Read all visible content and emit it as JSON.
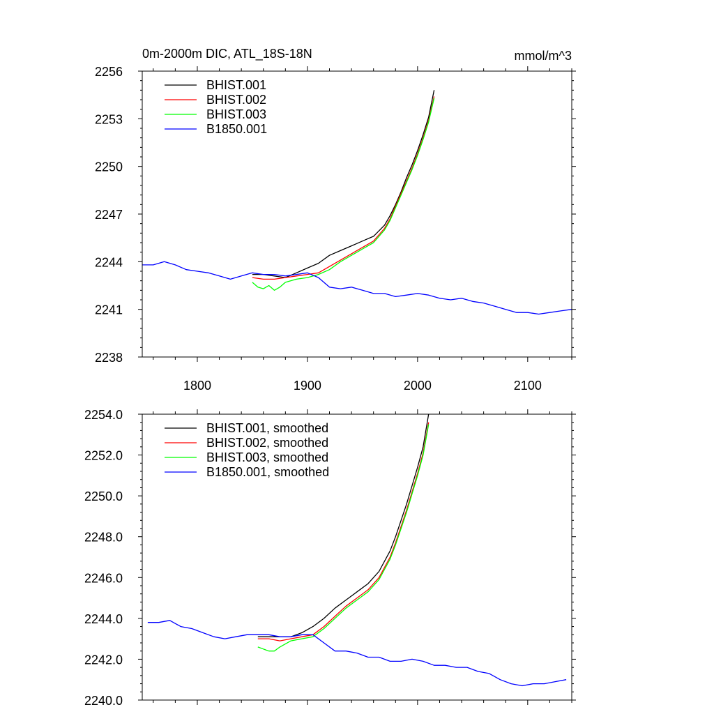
{
  "page": {
    "title": "0m-2000m DIC, ATL_18S-18N",
    "units": "mmol/m^3"
  },
  "chart_data": [
    {
      "type": "line",
      "title": "0m-2000m DIC, ATL_18S-18N",
      "units_label": "mmol/m^3",
      "xlim": [
        1750,
        2140
      ],
      "ylim": [
        2238,
        2256
      ],
      "x_ticks": [
        1800,
        1900,
        2000,
        2100
      ],
      "x_tick_labels": [
        "1800",
        "1900",
        "2000",
        "2100"
      ],
      "y_ticks": [
        2238,
        2241,
        2244,
        2247,
        2250,
        2253,
        2256
      ],
      "y_tick_labels": [
        "2238",
        "2241",
        "2244",
        "2247",
        "2250",
        "2253",
        "2256"
      ],
      "legend_position": "top-left",
      "grid": false,
      "series": [
        {
          "name": "BHIST.001",
          "color": "#000000",
          "x": [
            1850,
            1860,
            1870,
            1880,
            1890,
            1900,
            1910,
            1920,
            1930,
            1940,
            1950,
            1960,
            1970,
            1975,
            1980,
            1985,
            1990,
            1995,
            2000,
            2005,
            2010,
            2015
          ],
          "y": [
            2243.2,
            2243.2,
            2243.1,
            2243.0,
            2243.3,
            2243.6,
            2243.9,
            2244.4,
            2244.7,
            2245.0,
            2245.3,
            2245.6,
            2246.3,
            2246.9,
            2247.6,
            2248.4,
            2249.3,
            2250.1,
            2251.0,
            2252.0,
            2253.1,
            2254.8
          ]
        },
        {
          "name": "BHIST.002",
          "color": "#ff0000",
          "x": [
            1850,
            1860,
            1870,
            1880,
            1890,
            1900,
            1910,
            1920,
            1930,
            1940,
            1950,
            1960,
            1970,
            1975,
            1980,
            1985,
            1990,
            1995,
            2000,
            2005,
            2010,
            2015
          ],
          "y": [
            2243.0,
            2242.9,
            2242.9,
            2243.0,
            2243.1,
            2243.2,
            2243.3,
            2243.7,
            2244.1,
            2244.5,
            2244.9,
            2245.3,
            2246.1,
            2246.7,
            2247.5,
            2248.3,
            2249.1,
            2249.9,
            2250.8,
            2251.8,
            2252.9,
            2254.4
          ]
        },
        {
          "name": "BHIST.003",
          "color": "#00ff00",
          "x": [
            1850,
            1855,
            1860,
            1865,
            1870,
            1875,
            1880,
            1890,
            1900,
            1910,
            1920,
            1930,
            1940,
            1950,
            1960,
            1970,
            1975,
            1980,
            1985,
            1990,
            1995,
            2000,
            2005,
            2010,
            2015
          ],
          "y": [
            2242.7,
            2242.4,
            2242.3,
            2242.5,
            2242.2,
            2242.4,
            2242.7,
            2242.9,
            2243.0,
            2243.2,
            2243.5,
            2244.0,
            2244.4,
            2244.8,
            2245.2,
            2246.0,
            2246.6,
            2247.4,
            2248.2,
            2249.0,
            2249.8,
            2250.7,
            2251.7,
            2252.8,
            2254.3
          ]
        },
        {
          "name": "B1850.001",
          "color": "#0000ff",
          "x": [
            1750,
            1760,
            1770,
            1780,
            1790,
            1800,
            1810,
            1820,
            1830,
            1840,
            1850,
            1860,
            1870,
            1880,
            1890,
            1900,
            1910,
            1920,
            1930,
            1940,
            1950,
            1960,
            1970,
            1980,
            1990,
            2000,
            2010,
            2020,
            2030,
            2040,
            2050,
            2060,
            2070,
            2080,
            2090,
            2100,
            2110,
            2120,
            2130,
            2140
          ],
          "y": [
            2243.8,
            2243.8,
            2244.0,
            2243.8,
            2243.5,
            2243.4,
            2243.3,
            2243.1,
            2242.9,
            2243.1,
            2243.3,
            2243.2,
            2243.2,
            2243.1,
            2243.2,
            2243.3,
            2243.0,
            2242.4,
            2242.3,
            2242.4,
            2242.2,
            2242.0,
            2242.0,
            2241.8,
            2241.9,
            2242.0,
            2241.9,
            2241.7,
            2241.6,
            2241.7,
            2241.5,
            2241.4,
            2241.2,
            2241.0,
            2240.8,
            2240.8,
            2240.7,
            2240.8,
            2240.9,
            2241.0
          ]
        }
      ]
    },
    {
      "type": "line",
      "xlim": [
        1750,
        2140
      ],
      "ylim": [
        2240.0,
        2254.0
      ],
      "x_ticks": [
        1800,
        1900,
        2000,
        2100
      ],
      "y_ticks": [
        2240,
        2242,
        2244,
        2246,
        2248,
        2250,
        2252,
        2254
      ],
      "y_tick_labels": [
        "2240.0",
        "2242.0",
        "2244.0",
        "2246.0",
        "2248.0",
        "2250.0",
        "2252.0",
        "2254.0"
      ],
      "legend_position": "top-left",
      "grid": false,
      "series": [
        {
          "name": "BHIST.001, smoothed",
          "color": "#000000",
          "x": [
            1855,
            1865,
            1875,
            1885,
            1895,
            1905,
            1915,
            1925,
            1935,
            1945,
            1955,
            1965,
            1975,
            1980,
            1985,
            1990,
            1995,
            2000,
            2005,
            2010
          ],
          "y": [
            2243.1,
            2243.1,
            2243.1,
            2243.1,
            2243.3,
            2243.6,
            2244.0,
            2244.5,
            2244.9,
            2245.3,
            2245.7,
            2246.3,
            2247.3,
            2248.0,
            2248.8,
            2249.6,
            2250.5,
            2251.4,
            2252.4,
            2254.0
          ]
        },
        {
          "name": "BHIST.002, smoothed",
          "color": "#ff0000",
          "x": [
            1855,
            1865,
            1875,
            1885,
            1895,
            1905,
            1915,
            1925,
            1935,
            1945,
            1955,
            1965,
            1975,
            1980,
            1985,
            1990,
            1995,
            2000,
            2005,
            2010
          ],
          "y": [
            2243.0,
            2243.0,
            2242.9,
            2243.0,
            2243.1,
            2243.2,
            2243.6,
            2244.1,
            2244.6,
            2245.0,
            2245.4,
            2246.0,
            2247.0,
            2247.7,
            2248.5,
            2249.3,
            2250.2,
            2251.1,
            2252.1,
            2253.6
          ]
        },
        {
          "name": "BHIST.003, smoothed",
          "color": "#00ff00",
          "x": [
            1855,
            1860,
            1865,
            1870,
            1875,
            1885,
            1895,
            1905,
            1915,
            1925,
            1935,
            1945,
            1955,
            1965,
            1975,
            1980,
            1985,
            1990,
            1995,
            2000,
            2005,
            2010
          ],
          "y": [
            2242.6,
            2242.5,
            2242.4,
            2242.4,
            2242.6,
            2242.9,
            2243.0,
            2243.1,
            2243.5,
            2244.0,
            2244.5,
            2244.9,
            2245.3,
            2245.9,
            2246.9,
            2247.6,
            2248.4,
            2249.2,
            2250.1,
            2251.0,
            2252.0,
            2253.5
          ]
        },
        {
          "name": "B1850.001, smoothed",
          "color": "#0000ff",
          "x": [
            1755,
            1765,
            1775,
            1785,
            1795,
            1805,
            1815,
            1825,
            1835,
            1845,
            1855,
            1865,
            1875,
            1885,
            1895,
            1905,
            1915,
            1925,
            1935,
            1945,
            1955,
            1965,
            1975,
            1985,
            1995,
            2005,
            2015,
            2025,
            2035,
            2045,
            2055,
            2065,
            2075,
            2085,
            2095,
            2105,
            2115,
            2125,
            2135
          ],
          "y": [
            2243.8,
            2243.8,
            2243.9,
            2243.6,
            2243.5,
            2243.3,
            2243.1,
            2243.0,
            2243.1,
            2243.2,
            2243.2,
            2243.2,
            2243.1,
            2243.1,
            2243.2,
            2243.2,
            2242.8,
            2242.4,
            2242.4,
            2242.3,
            2242.1,
            2242.1,
            2241.9,
            2241.9,
            2242.0,
            2241.9,
            2241.7,
            2241.7,
            2241.6,
            2241.6,
            2241.4,
            2241.3,
            2241.0,
            2240.8,
            2240.7,
            2240.8,
            2240.8,
            2240.9,
            2241.0
          ]
        }
      ]
    }
  ]
}
